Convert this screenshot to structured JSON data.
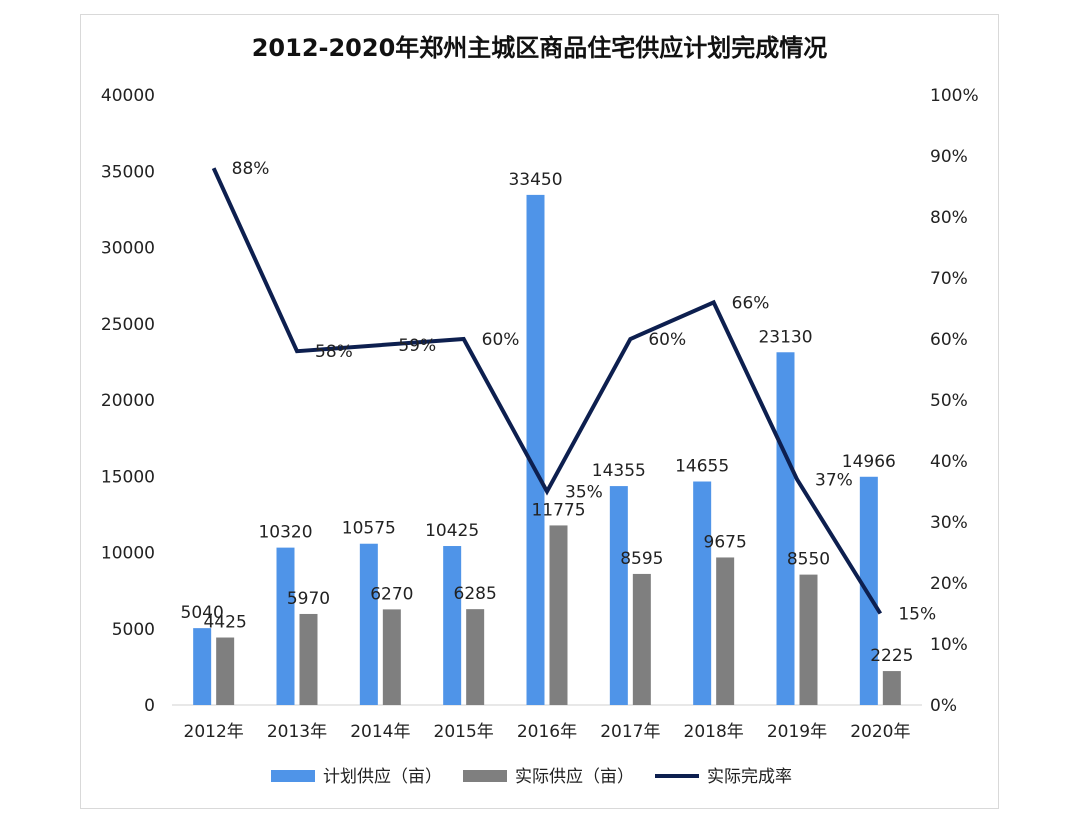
{
  "chart_data": {
    "type": "bar",
    "title": "2012-2020年郑州主城区商品住宅供应计划完成情况",
    "categories": [
      "2012年",
      "2013年",
      "2014年",
      "2015年",
      "2016年",
      "2017年",
      "2018年",
      "2019年",
      "2020年"
    ],
    "series": [
      {
        "name": "计划供应（亩）",
        "type": "bar",
        "color": "#4f94e8",
        "values": [
          5040,
          10320,
          10575,
          10425,
          33450,
          14355,
          14655,
          23130,
          14966
        ]
      },
      {
        "name": "实际供应（亩）",
        "type": "bar",
        "color": "#7f7f7f",
        "values": [
          4425,
          5970,
          6270,
          6285,
          11775,
          8595,
          9675,
          8550,
          2225
        ]
      },
      {
        "name": "实际完成率",
        "type": "line",
        "axis": "right",
        "color": "#0d1f4f",
        "values": [
          88,
          58,
          59,
          60,
          35,
          60,
          66,
          37,
          15
        ],
        "labels": [
          "88%",
          "58%",
          "59%",
          "60%",
          "35%",
          "60%",
          "66%",
          "37%",
          "15%"
        ]
      }
    ],
    "y_left": {
      "min": 0,
      "max": 40000,
      "step": 5000,
      "ticks": [
        "0",
        "5000",
        "10000",
        "15000",
        "20000",
        "25000",
        "30000",
        "35000",
        "40000"
      ]
    },
    "y_right": {
      "min": 0,
      "max": 100,
      "step": 10,
      "ticks": [
        "0%",
        "10%",
        "20%",
        "30%",
        "40%",
        "50%",
        "60%",
        "70%",
        "80%",
        "90%",
        "100%"
      ]
    },
    "grid": false,
    "legend": "bottom"
  }
}
